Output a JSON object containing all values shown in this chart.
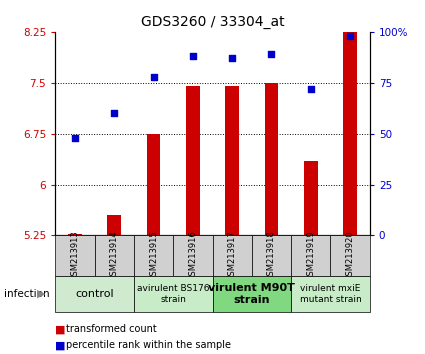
{
  "title": "GDS3260 / 33304_at",
  "samples": [
    "GSM213913",
    "GSM213914",
    "GSM213915",
    "GSM213916",
    "GSM213917",
    "GSM213918",
    "GSM213919",
    "GSM213920"
  ],
  "bar_values": [
    5.27,
    5.55,
    6.75,
    7.45,
    7.45,
    7.5,
    6.35,
    8.4
  ],
  "dot_values": [
    48,
    60,
    78,
    88,
    87,
    89,
    72,
    98
  ],
  "bar_color": "#cc0000",
  "dot_color": "#0000cc",
  "bar_bottom": 5.25,
  "ylim_left": [
    5.25,
    8.25
  ],
  "ylim_right": [
    0,
    100
  ],
  "yticks_left": [
    5.25,
    6.0,
    6.75,
    7.5,
    8.25
  ],
  "ytick_labels_left": [
    "5.25",
    "6",
    "6.75",
    "7.5",
    "8.25"
  ],
  "yticks_right": [
    0,
    25,
    50,
    75,
    100
  ],
  "ytick_labels_right": [
    "0",
    "25",
    "50",
    "75",
    "100%"
  ],
  "hlines": [
    6.0,
    6.75,
    7.5
  ],
  "groups": [
    {
      "label": "control",
      "spans": [
        0,
        2
      ],
      "color": "#d0ead0",
      "fontsize": 8,
      "bold": false
    },
    {
      "label": "avirulent BS176\nstrain",
      "spans": [
        2,
        4
      ],
      "color": "#c8ecc8",
      "fontsize": 6.5,
      "bold": false
    },
    {
      "label": "virulent M90T\nstrain",
      "spans": [
        4,
        6
      ],
      "color": "#80d880",
      "fontsize": 8,
      "bold": true
    },
    {
      "label": "virulent mxiE\nmutant strain",
      "spans": [
        6,
        8
      ],
      "color": "#c8ecc8",
      "fontsize": 6.5,
      "bold": false
    }
  ],
  "sample_box_color": "#d0d0d0",
  "infection_label": "infection",
  "legend_bar_label": "transformed count",
  "legend_dot_label": "percentile rank within the sample",
  "tick_label_color_left": "#cc0000",
  "tick_label_color_right": "#0000cc",
  "bar_width": 0.35
}
